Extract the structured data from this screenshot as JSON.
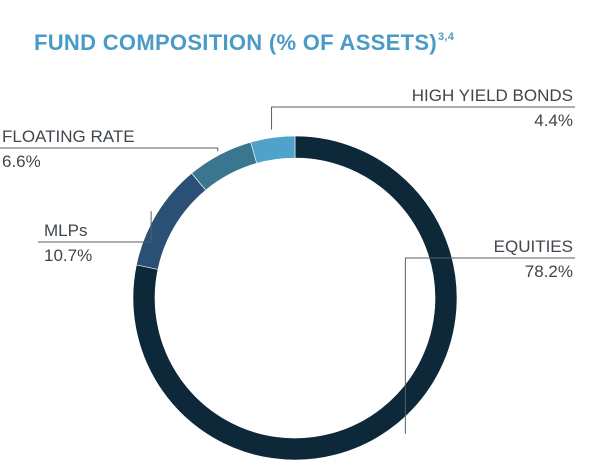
{
  "chart_data": {
    "type": "pie",
    "title": "FUND COMPOSITION (% OF ASSETS)",
    "title_superscript": "3,4",
    "categories": [
      "EQUITIES",
      "MLPs",
      "FLOATING RATE",
      "HIGH YIELD BONDS"
    ],
    "values": [
      78.2,
      10.7,
      6.6,
      4.4
    ],
    "value_labels": [
      "78.2%",
      "10.7%",
      "6.6%",
      "4.4%"
    ],
    "colors": [
      "#0d2839",
      "#2a5076",
      "#3b7690",
      "#4fa2c9"
    ],
    "donut": true,
    "legend": "none"
  },
  "style": {
    "title_color": "#4a9bc5",
    "label_color": "#3f464c",
    "leader_color": "#5a5f63",
    "background": "#ffffff"
  }
}
